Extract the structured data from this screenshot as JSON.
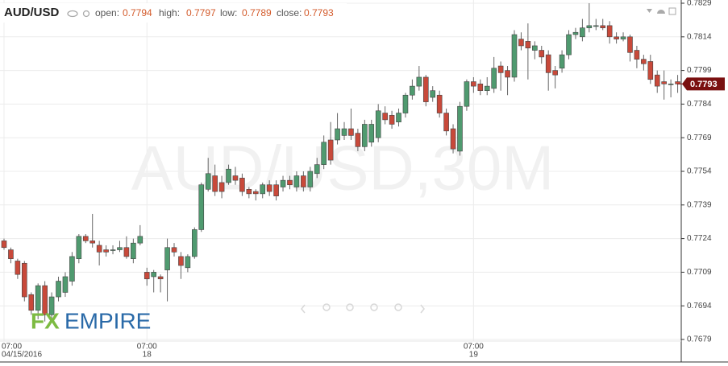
{
  "chart_data": {
    "type": "candlestick",
    "title": "AUD/USD",
    "readout": [
      {
        "label": "open:",
        "value": 0.7794
      },
      {
        "label": "high:",
        "value": 0.7797
      },
      {
        "label": "low:",
        "value": 0.7789
      },
      {
        "label": "close:",
        "value": 0.7793
      }
    ],
    "watermark": "AUD/USD,30M",
    "logo": [
      "FX",
      "EMPIRE"
    ],
    "last_price": 0.7793,
    "up_color": "#4f9a6f",
    "down_color": "#c8493a",
    "ylim": [
      0.7679,
      0.7829
    ],
    "yticks": [
      0.7679,
      0.7694,
      0.7709,
      0.7724,
      0.7739,
      0.7754,
      0.7769,
      0.7784,
      0.7799,
      0.7814,
      0.7829
    ],
    "x_labels": [
      {
        "index": 0,
        "time": "07:00",
        "date": "04/15/2016"
      },
      {
        "index": 21,
        "time": "07:00",
        "date": "18"
      },
      {
        "index": 69,
        "time": "07:00",
        "date": "19"
      }
    ],
    "open": [
      0.7723,
      0.7719,
      0.7714,
      0.7713,
      0.7699,
      0.7692,
      0.7703,
      0.769,
      0.7698,
      0.77,
      0.7705,
      0.7715,
      0.7725,
      0.7723,
      0.7721,
      0.7719,
      0.7719,
      0.7719,
      0.772,
      0.7715,
      0.7722,
      0.7709,
      0.7707,
      0.7707,
      0.771,
      0.772,
      0.7716,
      0.7711,
      0.7716,
      0.7728,
      0.7746,
      0.7752,
      0.7749,
      0.7749,
      0.7752,
      0.7751,
      0.7746,
      0.7745,
      0.7744,
      0.7748,
      0.7748,
      0.7747,
      0.775,
      0.7747,
      0.7752,
      0.7747,
      0.7753,
      0.7757,
      0.7768,
      0.7768,
      0.777,
      0.7773,
      0.7771,
      0.7765,
      0.7767,
      0.7769,
      0.778,
      0.7779,
      0.7776,
      0.778,
      0.7788,
      0.7792,
      0.7796,
      0.7787,
      0.7788,
      0.778,
      0.7773,
      0.7763,
      0.7783,
      0.7794,
      0.7793,
      0.779,
      0.7791,
      0.7801,
      0.7799,
      0.7796,
      0.7813,
      0.7812,
      0.7808,
      0.7808,
      0.7806,
      0.7799,
      0.78,
      0.7806,
      0.7815,
      0.7814,
      0.7818,
      0.7819,
      0.7819,
      0.7819,
      0.7814,
      0.7813,
      0.7814,
      0.7808,
      0.7804,
      0.7803,
      0.7797,
      0.7794,
      0.7793,
      0.7794
    ],
    "high": [
      0.7724,
      0.772,
      0.7715,
      0.7714,
      0.77,
      0.7704,
      0.7705,
      0.77,
      0.7707,
      0.7709,
      0.7718,
      0.7726,
      0.7726,
      0.7735,
      0.7723,
      0.7721,
      0.7721,
      0.7723,
      0.7725,
      0.7724,
      0.773,
      0.7711,
      0.771,
      0.7708,
      0.7724,
      0.7722,
      0.7718,
      0.7717,
      0.7729,
      0.7749,
      0.776,
      0.7757,
      0.7752,
      0.7757,
      0.7756,
      0.7753,
      0.7747,
      0.7746,
      0.7749,
      0.775,
      0.775,
      0.7752,
      0.7752,
      0.7754,
      0.7754,
      0.7756,
      0.776,
      0.777,
      0.7776,
      0.778,
      0.7776,
      0.7782,
      0.7773,
      0.7777,
      0.7777,
      0.7784,
      0.7783,
      0.7781,
      0.7782,
      0.7789,
      0.7795,
      0.7801,
      0.7797,
      0.7792,
      0.779,
      0.7782,
      0.7775,
      0.7785,
      0.7795,
      0.7796,
      0.7795,
      0.7796,
      0.7805,
      0.7803,
      0.7801,
      0.7817,
      0.7816,
      0.782,
      0.7812,
      0.781,
      0.7808,
      0.7801,
      0.7808,
      0.7817,
      0.7818,
      0.7822,
      0.7829,
      0.7822,
      0.7822,
      0.7821,
      0.7816,
      0.7816,
      0.7815,
      0.781,
      0.7806,
      0.7806,
      0.7799,
      0.7799,
      0.7795,
      0.7797
    ],
    "low": [
      0.7719,
      0.7713,
      0.7706,
      0.7696,
      0.769,
      0.7688,
      0.7687,
      0.7688,
      0.7696,
      0.7698,
      0.7703,
      0.7713,
      0.7722,
      0.772,
      0.7712,
      0.7716,
      0.7717,
      0.7718,
      0.7715,
      0.7713,
      0.7721,
      0.7703,
      0.77,
      0.77,
      0.7696,
      0.7716,
      0.7706,
      0.7709,
      0.7715,
      0.7727,
      0.7745,
      0.7743,
      0.7742,
      0.7748,
      0.7748,
      0.7743,
      0.7742,
      0.7741,
      0.7742,
      0.7743,
      0.7741,
      0.7745,
      0.7746,
      0.7745,
      0.7745,
      0.7745,
      0.7751,
      0.7755,
      0.7757,
      0.7766,
      0.7768,
      0.7768,
      0.7763,
      0.7763,
      0.7765,
      0.7767,
      0.7775,
      0.7773,
      0.7774,
      0.7778,
      0.7786,
      0.779,
      0.7783,
      0.7785,
      0.7778,
      0.777,
      0.7762,
      0.7761,
      0.7781,
      0.7789,
      0.7788,
      0.7788,
      0.7789,
      0.779,
      0.7788,
      0.7794,
      0.7808,
      0.7795,
      0.7804,
      0.7802,
      0.779,
      0.7791,
      0.7798,
      0.7804,
      0.7813,
      0.7812,
      0.7816,
      0.7817,
      0.7817,
      0.7811,
      0.7811,
      0.7812,
      0.7803,
      0.78,
      0.7799,
      0.7793,
      0.7789,
      0.7786,
      0.7787,
      0.7789
    ],
    "close": [
      0.772,
      0.7715,
      0.7708,
      0.7698,
      0.7692,
      0.7703,
      0.769,
      0.7698,
      0.7705,
      0.7707,
      0.7716,
      0.7725,
      0.7723,
      0.7722,
      0.7718,
      0.7718,
      0.7719,
      0.772,
      0.7716,
      0.7722,
      0.7725,
      0.7706,
      0.7709,
      0.7706,
      0.772,
      0.7718,
      0.7712,
      0.7716,
      0.7728,
      0.7748,
      0.7753,
      0.7745,
      0.7745,
      0.7755,
      0.775,
      0.7745,
      0.7744,
      0.7744,
      0.7748,
      0.7745,
      0.7743,
      0.775,
      0.7748,
      0.7752,
      0.7747,
      0.7754,
      0.7757,
      0.7767,
      0.7759,
      0.7773,
      0.7773,
      0.777,
      0.7765,
      0.7775,
      0.7775,
      0.7781,
      0.7777,
      0.7775,
      0.778,
      0.7788,
      0.7792,
      0.7796,
      0.7785,
      0.779,
      0.778,
      0.7772,
      0.7764,
      0.7783,
      0.7794,
      0.7792,
      0.779,
      0.7792,
      0.78,
      0.7798,
      0.7796,
      0.7815,
      0.781,
      0.7809,
      0.781,
      0.7805,
      0.7798,
      0.7797,
      0.7806,
      0.7815,
      0.7816,
      0.7818,
      0.7819,
      0.7819,
      0.7818,
      0.7814,
      0.7813,
      0.7814,
      0.7807,
      0.7804,
      0.7802,
      0.7795,
      0.7792,
      0.7793,
      0.7793,
      0.7793
    ]
  }
}
